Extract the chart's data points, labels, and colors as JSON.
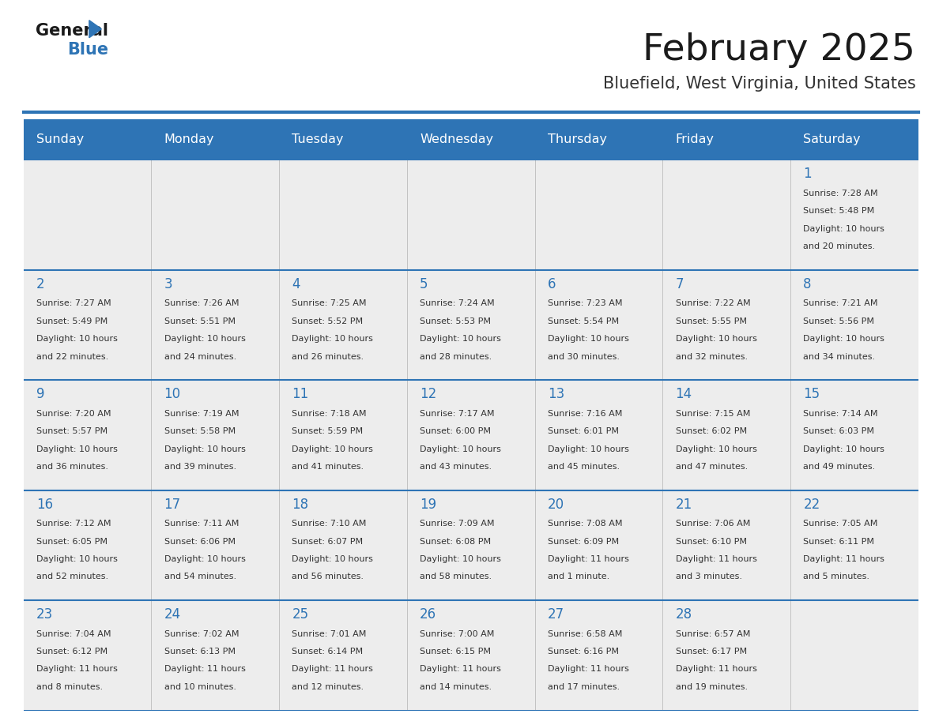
{
  "title": "February 2025",
  "subtitle": "Bluefield, West Virginia, United States",
  "header_bg": "#2E74B5",
  "header_text_color": "#FFFFFF",
  "row_bg_light": "#EDEDED",
  "separator_color": "#2E74B5",
  "day_headers": [
    "Sunday",
    "Monday",
    "Tuesday",
    "Wednesday",
    "Thursday",
    "Friday",
    "Saturday"
  ],
  "title_color": "#1A1A1A",
  "subtitle_color": "#333333",
  "day_num_color": "#2E74B5",
  "cell_text_color": "#333333",
  "days": [
    {
      "day": 1,
      "col": 6,
      "row": 0,
      "sunrise": "7:28 AM",
      "sunset": "5:48 PM",
      "daylight": "10 hours",
      "daylight2": "and 20 minutes."
    },
    {
      "day": 2,
      "col": 0,
      "row": 1,
      "sunrise": "7:27 AM",
      "sunset": "5:49 PM",
      "daylight": "10 hours",
      "daylight2": "and 22 minutes."
    },
    {
      "day": 3,
      "col": 1,
      "row": 1,
      "sunrise": "7:26 AM",
      "sunset": "5:51 PM",
      "daylight": "10 hours",
      "daylight2": "and 24 minutes."
    },
    {
      "day": 4,
      "col": 2,
      "row": 1,
      "sunrise": "7:25 AM",
      "sunset": "5:52 PM",
      "daylight": "10 hours",
      "daylight2": "and 26 minutes."
    },
    {
      "day": 5,
      "col": 3,
      "row": 1,
      "sunrise": "7:24 AM",
      "sunset": "5:53 PM",
      "daylight": "10 hours",
      "daylight2": "and 28 minutes."
    },
    {
      "day": 6,
      "col": 4,
      "row": 1,
      "sunrise": "7:23 AM",
      "sunset": "5:54 PM",
      "daylight": "10 hours",
      "daylight2": "and 30 minutes."
    },
    {
      "day": 7,
      "col": 5,
      "row": 1,
      "sunrise": "7:22 AM",
      "sunset": "5:55 PM",
      "daylight": "10 hours",
      "daylight2": "and 32 minutes."
    },
    {
      "day": 8,
      "col": 6,
      "row": 1,
      "sunrise": "7:21 AM",
      "sunset": "5:56 PM",
      "daylight": "10 hours",
      "daylight2": "and 34 minutes."
    },
    {
      "day": 9,
      "col": 0,
      "row": 2,
      "sunrise": "7:20 AM",
      "sunset": "5:57 PM",
      "daylight": "10 hours",
      "daylight2": "and 36 minutes."
    },
    {
      "day": 10,
      "col": 1,
      "row": 2,
      "sunrise": "7:19 AM",
      "sunset": "5:58 PM",
      "daylight": "10 hours",
      "daylight2": "and 39 minutes."
    },
    {
      "day": 11,
      "col": 2,
      "row": 2,
      "sunrise": "7:18 AM",
      "sunset": "5:59 PM",
      "daylight": "10 hours",
      "daylight2": "and 41 minutes."
    },
    {
      "day": 12,
      "col": 3,
      "row": 2,
      "sunrise": "7:17 AM",
      "sunset": "6:00 PM",
      "daylight": "10 hours",
      "daylight2": "and 43 minutes."
    },
    {
      "day": 13,
      "col": 4,
      "row": 2,
      "sunrise": "7:16 AM",
      "sunset": "6:01 PM",
      "daylight": "10 hours",
      "daylight2": "and 45 minutes."
    },
    {
      "day": 14,
      "col": 5,
      "row": 2,
      "sunrise": "7:15 AM",
      "sunset": "6:02 PM",
      "daylight": "10 hours",
      "daylight2": "and 47 minutes."
    },
    {
      "day": 15,
      "col": 6,
      "row": 2,
      "sunrise": "7:14 AM",
      "sunset": "6:03 PM",
      "daylight": "10 hours",
      "daylight2": "and 49 minutes."
    },
    {
      "day": 16,
      "col": 0,
      "row": 3,
      "sunrise": "7:12 AM",
      "sunset": "6:05 PM",
      "daylight": "10 hours",
      "daylight2": "and 52 minutes."
    },
    {
      "day": 17,
      "col": 1,
      "row": 3,
      "sunrise": "7:11 AM",
      "sunset": "6:06 PM",
      "daylight": "10 hours",
      "daylight2": "and 54 minutes."
    },
    {
      "day": 18,
      "col": 2,
      "row": 3,
      "sunrise": "7:10 AM",
      "sunset": "6:07 PM",
      "daylight": "10 hours",
      "daylight2": "and 56 minutes."
    },
    {
      "day": 19,
      "col": 3,
      "row": 3,
      "sunrise": "7:09 AM",
      "sunset": "6:08 PM",
      "daylight": "10 hours",
      "daylight2": "and 58 minutes."
    },
    {
      "day": 20,
      "col": 4,
      "row": 3,
      "sunrise": "7:08 AM",
      "sunset": "6:09 PM",
      "daylight": "11 hours",
      "daylight2": "and 1 minute."
    },
    {
      "day": 21,
      "col": 5,
      "row": 3,
      "sunrise": "7:06 AM",
      "sunset": "6:10 PM",
      "daylight": "11 hours",
      "daylight2": "and 3 minutes."
    },
    {
      "day": 22,
      "col": 6,
      "row": 3,
      "sunrise": "7:05 AM",
      "sunset": "6:11 PM",
      "daylight": "11 hours",
      "daylight2": "and 5 minutes."
    },
    {
      "day": 23,
      "col": 0,
      "row": 4,
      "sunrise": "7:04 AM",
      "sunset": "6:12 PM",
      "daylight": "11 hours",
      "daylight2": "and 8 minutes."
    },
    {
      "day": 24,
      "col": 1,
      "row": 4,
      "sunrise": "7:02 AM",
      "sunset": "6:13 PM",
      "daylight": "11 hours",
      "daylight2": "and 10 minutes."
    },
    {
      "day": 25,
      "col": 2,
      "row": 4,
      "sunrise": "7:01 AM",
      "sunset": "6:14 PM",
      "daylight": "11 hours",
      "daylight2": "and 12 minutes."
    },
    {
      "day": 26,
      "col": 3,
      "row": 4,
      "sunrise": "7:00 AM",
      "sunset": "6:15 PM",
      "daylight": "11 hours",
      "daylight2": "and 14 minutes."
    },
    {
      "day": 27,
      "col": 4,
      "row": 4,
      "sunrise": "6:58 AM",
      "sunset": "6:16 PM",
      "daylight": "11 hours",
      "daylight2": "and 17 minutes."
    },
    {
      "day": 28,
      "col": 5,
      "row": 4,
      "sunrise": "6:57 AM",
      "sunset": "6:17 PM",
      "daylight": "11 hours",
      "daylight2": "and 19 minutes."
    }
  ]
}
